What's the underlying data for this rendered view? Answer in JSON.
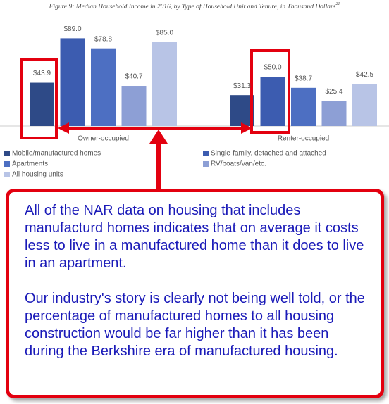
{
  "chart_data": {
    "type": "bar",
    "title": "Figure 9: Median Household Income in 2016, by Type of Household Unit and Tenure, in Thousand Dollars",
    "title_note": "21",
    "categories": [
      "Owner-occupied",
      "Renter-occupied"
    ],
    "series": [
      {
        "name": "Mobile/manufactured homes",
        "color": "#2e4a87",
        "values": [
          43.9,
          31.3
        ],
        "value_labels": [
          "$43.9",
          "$31.3"
        ]
      },
      {
        "name": "Single-family, detached and attached",
        "color": "#3c5cb0",
        "values": [
          89.0,
          50.0
        ],
        "value_labels": [
          "$89.0",
          "$50.0"
        ]
      },
      {
        "name": "Apartments",
        "color": "#4d6fc2",
        "values": [
          78.8,
          38.7
        ],
        "value_labels": [
          "$78.8",
          "$38.7"
        ]
      },
      {
        "name": "RV/boats/van/etc.",
        "color": "#8d9fd5",
        "values": [
          40.7,
          25.4
        ],
        "value_labels": [
          "$40.7",
          "$25.4"
        ]
      },
      {
        "name": "All housing units",
        "color": "#b8c4e6",
        "values": [
          85.0,
          42.5
        ],
        "value_labels": [
          "$85.0",
          "$42.5"
        ]
      }
    ],
    "ylim": [
      0,
      100
    ]
  },
  "annotation": {
    "paragraphs": [
      "All of the NAR data on housing that includes manufacturd homes indicates that on average it costs less to live in a manufactured home than it does to live in an apartment.",
      "Our industry's story is clearly not being well told, or the percentage of manufactured homes to all housing construction would be far higher than it has been during the Berkshire era of manufactured housing."
    ]
  }
}
